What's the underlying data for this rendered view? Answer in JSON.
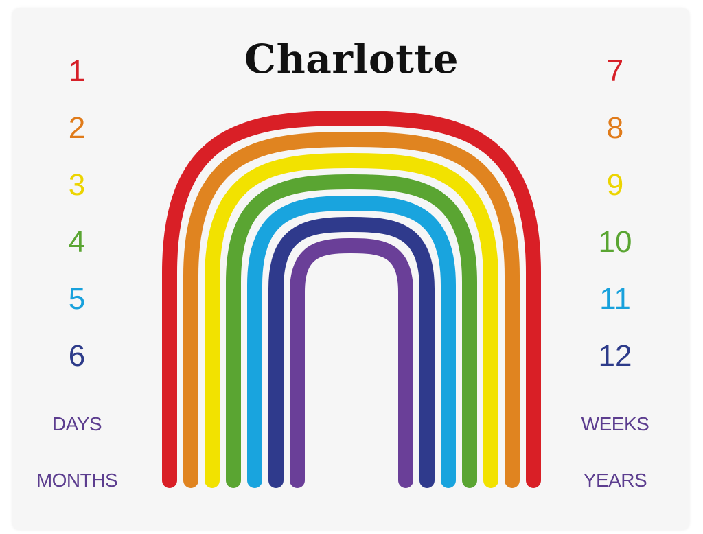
{
  "title": "Charlotte",
  "left_numbers": [
    {
      "label": "1",
      "color": "#d62028"
    },
    {
      "label": "2",
      "color": "#e07b1a"
    },
    {
      "label": "3",
      "color": "#ecd400"
    },
    {
      "label": "4",
      "color": "#5aa532"
    },
    {
      "label": "5",
      "color": "#18a1dc"
    },
    {
      "label": "6",
      "color": "#2d3b8a"
    }
  ],
  "right_numbers": [
    {
      "label": "7",
      "color": "#d62028"
    },
    {
      "label": "8",
      "color": "#e07b1a"
    },
    {
      "label": "9",
      "color": "#ecd400"
    },
    {
      "label": "10",
      "color": "#5aa532"
    },
    {
      "label": "11",
      "color": "#18a1dc"
    },
    {
      "label": "12",
      "color": "#2d3b8a"
    }
  ],
  "words": {
    "days": "DAYS",
    "weeks": "WEEKS",
    "months": "MONTHS",
    "years": "YEARS"
  },
  "rainbow_colors": [
    "#d91f26",
    "#e08420",
    "#f2e200",
    "#5aa532",
    "#19a4de",
    "#2f3a8c",
    "#6a3f98"
  ]
}
